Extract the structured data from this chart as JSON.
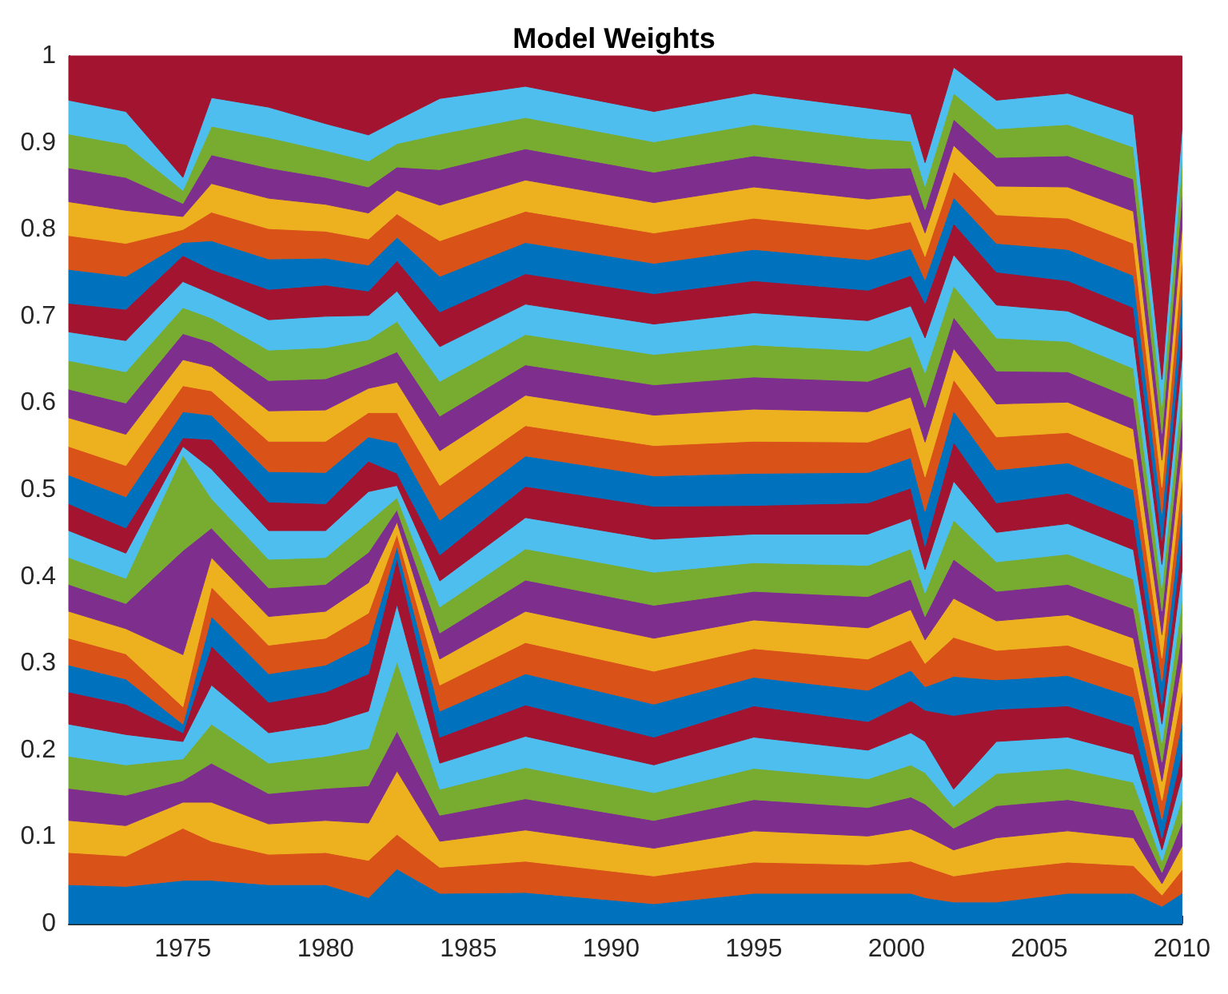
{
  "chart_data": {
    "type": "area",
    "title": "Model Weights",
    "stacked": true,
    "x": [
      1971,
      1973,
      1975,
      1976,
      1978,
      1980,
      1981.5,
      1982.5,
      1984,
      1987,
      1991.5,
      1995,
      1999,
      2000.5,
      2001,
      2002,
      2003.5,
      2006,
      2008.3,
      2009.3,
      2010
    ],
    "xlim": [
      1971,
      2010
    ],
    "xticks": [
      1975,
      1980,
      1985,
      1990,
      1995,
      2000,
      2005,
      2010
    ],
    "ylim": [
      0,
      1
    ],
    "yticks": [
      0,
      0.1,
      0.2,
      0.3,
      0.4,
      0.5,
      0.6,
      0.7,
      0.8,
      0.9,
      1
    ],
    "series": [
      {
        "color": "#0072bd",
        "values": [
          0.045,
          0.043,
          0.05,
          0.05,
          0.045,
          0.045,
          0.03,
          0.063,
          0.035,
          0.036,
          0.023,
          0.035,
          0.035,
          0.035,
          0.03,
          0.025,
          0.025,
          0.035,
          0.035,
          0.02,
          0.035
        ]
      },
      {
        "color": "#d95319",
        "values": [
          0.037,
          0.035,
          0.06,
          0.045,
          0.035,
          0.037,
          0.043,
          0.04,
          0.03,
          0.036,
          0.032,
          0.036,
          0.033,
          0.037,
          0.036,
          0.03,
          0.037,
          0.036,
          0.032,
          0.013,
          0.027
        ]
      },
      {
        "color": "#edb120",
        "values": [
          0.037,
          0.035,
          0.03,
          0.045,
          0.035,
          0.037,
          0.043,
          0.073,
          0.03,
          0.036,
          0.032,
          0.036,
          0.033,
          0.037,
          0.036,
          0.03,
          0.037,
          0.036,
          0.032,
          0.013,
          0.027
        ]
      },
      {
        "color": "#7e2f8e",
        "values": [
          0.037,
          0.035,
          0.025,
          0.045,
          0.035,
          0.037,
          0.043,
          0.046,
          0.03,
          0.036,
          0.032,
          0.036,
          0.033,
          0.037,
          0.036,
          0.025,
          0.037,
          0.036,
          0.032,
          0.013,
          0.027
        ]
      },
      {
        "color": "#77ac30",
        "values": [
          0.037,
          0.035,
          0.025,
          0.045,
          0.035,
          0.037,
          0.043,
          0.08,
          0.03,
          0.036,
          0.032,
          0.036,
          0.033,
          0.037,
          0.036,
          0.025,
          0.037,
          0.036,
          0.032,
          0.013,
          0.027
        ]
      },
      {
        "color": "#4dbeee",
        "values": [
          0.037,
          0.035,
          0.02,
          0.045,
          0.035,
          0.037,
          0.043,
          0.066,
          0.03,
          0.036,
          0.032,
          0.036,
          0.033,
          0.037,
          0.036,
          0.02,
          0.037,
          0.036,
          0.032,
          0.013,
          0.027
        ]
      },
      {
        "color": "#a2142f",
        "values": [
          0.037,
          0.035,
          0.01,
          0.045,
          0.035,
          0.037,
          0.043,
          0.053,
          0.03,
          0.036,
          0.032,
          0.036,
          0.033,
          0.037,
          0.036,
          0.085,
          0.037,
          0.036,
          0.032,
          0.013,
          0.027
        ]
      },
      {
        "color": "#0072bd",
        "values": [
          0.031,
          0.029,
          0.01,
          0.034,
          0.033,
          0.031,
          0.035,
          0.014,
          0.03,
          0.036,
          0.038,
          0.033,
          0.036,
          0.035,
          0.027,
          0.045,
          0.034,
          0.035,
          0.034,
          0.022,
          0.035
        ]
      },
      {
        "color": "#d95319",
        "values": [
          0.031,
          0.029,
          0.02,
          0.034,
          0.033,
          0.031,
          0.035,
          0.014,
          0.03,
          0.036,
          0.038,
          0.033,
          0.036,
          0.035,
          0.027,
          0.045,
          0.034,
          0.035,
          0.034,
          0.022,
          0.035
        ]
      },
      {
        "color": "#edb120",
        "values": [
          0.031,
          0.029,
          0.06,
          0.034,
          0.033,
          0.031,
          0.035,
          0.014,
          0.03,
          0.036,
          0.038,
          0.033,
          0.036,
          0.035,
          0.027,
          0.045,
          0.034,
          0.035,
          0.034,
          0.022,
          0.035
        ]
      },
      {
        "color": "#7e2f8e",
        "values": [
          0.031,
          0.029,
          0.12,
          0.034,
          0.033,
          0.031,
          0.035,
          0.014,
          0.03,
          0.036,
          0.038,
          0.033,
          0.036,
          0.035,
          0.027,
          0.045,
          0.034,
          0.035,
          0.034,
          0.022,
          0.035
        ]
      },
      {
        "color": "#77ac30",
        "values": [
          0.031,
          0.029,
          0.11,
          0.034,
          0.033,
          0.031,
          0.035,
          0.014,
          0.03,
          0.036,
          0.038,
          0.033,
          0.036,
          0.035,
          0.027,
          0.045,
          0.034,
          0.035,
          0.034,
          0.022,
          0.035
        ]
      },
      {
        "color": "#4dbeee",
        "values": [
          0.031,
          0.029,
          0.01,
          0.034,
          0.033,
          0.031,
          0.035,
          0.014,
          0.03,
          0.036,
          0.038,
          0.033,
          0.036,
          0.035,
          0.027,
          0.045,
          0.034,
          0.035,
          0.034,
          0.022,
          0.035
        ]
      },
      {
        "color": "#a2142f",
        "values": [
          0.031,
          0.029,
          0.01,
          0.034,
          0.033,
          0.031,
          0.035,
          0.014,
          0.03,
          0.036,
          0.038,
          0.033,
          0.036,
          0.035,
          0.027,
          0.045,
          0.034,
          0.035,
          0.034,
          0.022,
          0.035
        ]
      },
      {
        "color": "#0072bd",
        "values": [
          0.033,
          0.036,
          0.03,
          0.028,
          0.035,
          0.036,
          0.028,
          0.035,
          0.04,
          0.035,
          0.035,
          0.037,
          0.035,
          0.035,
          0.04,
          0.036,
          0.038,
          0.035,
          0.035,
          0.027,
          0.035
        ]
      },
      {
        "color": "#d95319",
        "values": [
          0.033,
          0.036,
          0.03,
          0.028,
          0.035,
          0.036,
          0.028,
          0.035,
          0.04,
          0.035,
          0.035,
          0.037,
          0.035,
          0.035,
          0.04,
          0.036,
          0.038,
          0.035,
          0.035,
          0.027,
          0.035
        ]
      },
      {
        "color": "#edb120",
        "values": [
          0.033,
          0.036,
          0.03,
          0.028,
          0.035,
          0.036,
          0.028,
          0.035,
          0.04,
          0.035,
          0.035,
          0.037,
          0.035,
          0.035,
          0.04,
          0.036,
          0.038,
          0.035,
          0.035,
          0.027,
          0.035
        ]
      },
      {
        "color": "#7e2f8e",
        "values": [
          0.033,
          0.036,
          0.03,
          0.028,
          0.035,
          0.036,
          0.028,
          0.035,
          0.04,
          0.035,
          0.035,
          0.037,
          0.035,
          0.035,
          0.04,
          0.036,
          0.038,
          0.035,
          0.035,
          0.027,
          0.035
        ]
      },
      {
        "color": "#77ac30",
        "values": [
          0.033,
          0.036,
          0.03,
          0.028,
          0.035,
          0.036,
          0.028,
          0.035,
          0.04,
          0.035,
          0.035,
          0.037,
          0.035,
          0.035,
          0.04,
          0.036,
          0.038,
          0.035,
          0.035,
          0.027,
          0.035
        ]
      },
      {
        "color": "#4dbeee",
        "values": [
          0.033,
          0.036,
          0.03,
          0.028,
          0.035,
          0.036,
          0.028,
          0.035,
          0.04,
          0.035,
          0.035,
          0.037,
          0.035,
          0.035,
          0.04,
          0.036,
          0.038,
          0.035,
          0.035,
          0.027,
          0.035
        ]
      },
      {
        "color": "#a2142f",
        "values": [
          0.033,
          0.036,
          0.03,
          0.028,
          0.035,
          0.036,
          0.028,
          0.035,
          0.04,
          0.035,
          0.035,
          0.037,
          0.035,
          0.035,
          0.04,
          0.036,
          0.038,
          0.035,
          0.035,
          0.027,
          0.035
        ]
      },
      {
        "color": "#0072bd",
        "values": [
          0.039,
          0.038,
          0.015,
          0.033,
          0.035,
          0.031,
          0.03,
          0.027,
          0.041,
          0.036,
          0.035,
          0.036,
          0.035,
          0.031,
          0.027,
          0.03,
          0.033,
          0.036,
          0.037,
          0.031,
          0.038
        ]
      },
      {
        "color": "#d95319",
        "values": [
          0.039,
          0.038,
          0.015,
          0.033,
          0.035,
          0.031,
          0.03,
          0.027,
          0.041,
          0.036,
          0.035,
          0.036,
          0.035,
          0.031,
          0.027,
          0.03,
          0.033,
          0.036,
          0.037,
          0.031,
          0.038
        ]
      },
      {
        "color": "#edb120",
        "values": [
          0.039,
          0.038,
          0.015,
          0.033,
          0.035,
          0.031,
          0.03,
          0.027,
          0.041,
          0.036,
          0.035,
          0.036,
          0.035,
          0.031,
          0.027,
          0.03,
          0.033,
          0.036,
          0.037,
          0.031,
          0.038
        ]
      },
      {
        "color": "#7e2f8e",
        "values": [
          0.039,
          0.038,
          0.015,
          0.033,
          0.035,
          0.031,
          0.03,
          0.027,
          0.041,
          0.036,
          0.035,
          0.036,
          0.035,
          0.031,
          0.027,
          0.03,
          0.033,
          0.036,
          0.037,
          0.031,
          0.038
        ]
      },
      {
        "color": "#77ac30",
        "values": [
          0.039,
          0.038,
          0.015,
          0.033,
          0.035,
          0.031,
          0.03,
          0.027,
          0.041,
          0.036,
          0.035,
          0.036,
          0.035,
          0.031,
          0.027,
          0.03,
          0.033,
          0.036,
          0.037,
          0.031,
          0.038
        ]
      },
      {
        "color": "#4dbeee",
        "values": [
          0.039,
          0.038,
          0.015,
          0.033,
          0.035,
          0.031,
          0.03,
          0.027,
          0.041,
          0.036,
          0.035,
          0.036,
          0.035,
          0.031,
          0.027,
          0.03,
          0.033,
          0.036,
          0.037,
          0.031,
          0.038
        ]
      },
      {
        "color": "#a2142f",
        "values": [
          0.051,
          0.064,
          0.14,
          0.048,
          0.059,
          0.078,
          0.091,
          0.074,
          0.049,
          0.035,
          0.064,
          0.043,
          0.06,
          0.067,
          0.123,
          0.013,
          0.051,
          0.043,
          0.068,
          0.373,
          0.085
        ]
      }
    ]
  }
}
